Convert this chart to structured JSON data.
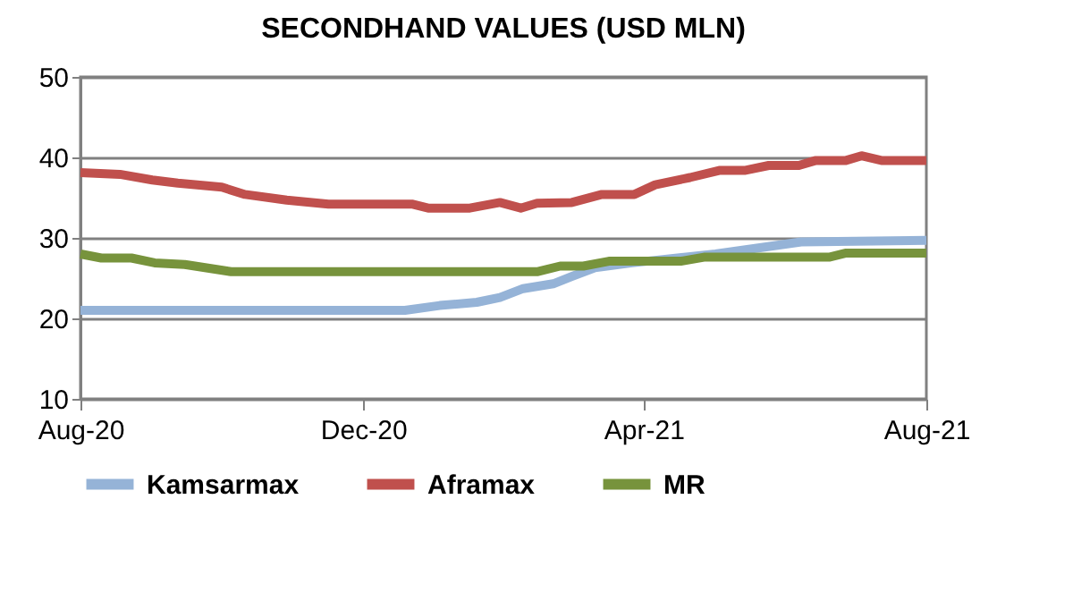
{
  "chart_data": {
    "type": "line",
    "title": "SECONDHAND VALUES (USD MLN)",
    "xlim": [
      "2020-08-01",
      "2021-08-01"
    ],
    "xticks": [
      {
        "value": "2020-08-01",
        "label": "Aug-20"
      },
      {
        "value": "2020-12-01",
        "label": "Dec-20"
      },
      {
        "value": "2021-04-01",
        "label": "Apr-21"
      },
      {
        "value": "2021-08-01",
        "label": "Aug-21"
      }
    ],
    "ylim": [
      10,
      50
    ],
    "yticks": [
      10,
      20,
      30,
      40,
      50
    ],
    "grid": "y",
    "legend": "bottom",
    "marker": "none",
    "line_style": "solid",
    "series": [
      {
        "name": "Kamsarmax",
        "color": "#95b3d7",
        "x": [
          "2020-08-01",
          "2020-12-19",
          "2021-01-03",
          "2021-01-19",
          "2021-01-29",
          "2021-02-08",
          "2021-02-21",
          "2021-03-01",
          "2021-03-11",
          "2021-03-27",
          "2021-05-02",
          "2021-06-08",
          "2021-08-01"
        ],
        "values": [
          21.0,
          21.0,
          21.6,
          22.0,
          22.6,
          23.7,
          24.3,
          25.2,
          26.3,
          26.9,
          28.0,
          29.5,
          29.7
        ]
      },
      {
        "name": "Aframax",
        "color": "#c0504d",
        "x": [
          "2020-08-01",
          "2020-08-18",
          "2020-09-01",
          "2020-09-12",
          "2020-10-01",
          "2020-10-11",
          "2020-10-29",
          "2020-11-16",
          "2020-12-01",
          "2020-12-22",
          "2020-12-29",
          "2021-01-16",
          "2021-01-29",
          "2021-02-07",
          "2021-02-14",
          "2021-03-01",
          "2021-03-14",
          "2021-03-28",
          "2021-04-06",
          "2021-04-21",
          "2021-05-04",
          "2021-05-15",
          "2021-05-25",
          "2021-06-07",
          "2021-06-14",
          "2021-06-27",
          "2021-07-04",
          "2021-07-13",
          "2021-08-01"
        ],
        "values": [
          38.1,
          37.9,
          37.2,
          36.8,
          36.3,
          35.4,
          34.7,
          34.2,
          34.2,
          34.2,
          33.7,
          33.7,
          34.4,
          33.7,
          34.3,
          34.4,
          35.4,
          35.4,
          36.6,
          37.5,
          38.4,
          38.4,
          39.0,
          39.0,
          39.6,
          39.6,
          40.2,
          39.6,
          39.6
        ]
      },
      {
        "name": "MR",
        "color": "#77933c",
        "x": [
          "2020-08-01",
          "2020-08-10",
          "2020-08-23",
          "2020-09-02",
          "2020-09-15",
          "2020-10-05",
          "2021-02-14",
          "2021-02-24",
          "2021-03-06",
          "2021-03-17",
          "2021-04-17",
          "2021-04-27",
          "2021-06-20",
          "2021-06-27",
          "2021-08-01"
        ],
        "values": [
          28.0,
          27.5,
          27.5,
          26.9,
          26.7,
          25.8,
          25.8,
          26.5,
          26.5,
          27.1,
          27.1,
          27.6,
          27.6,
          28.1,
          28.1
        ]
      }
    ]
  }
}
